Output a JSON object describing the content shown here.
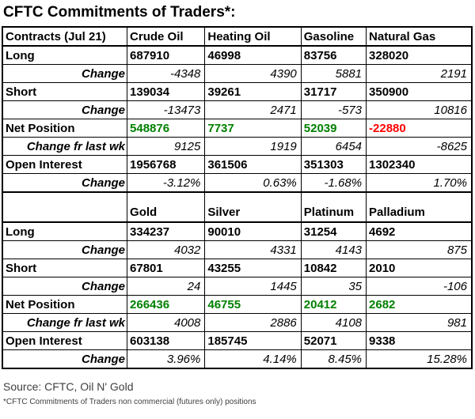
{
  "title": "CFTC Commitments of Traders*:",
  "colors": {
    "header_bg": "#E8C413",
    "label_bg": "#E9E8A0",
    "positive": "#008000",
    "negative": "#FF0000",
    "footer_text": "#3F3F3F"
  },
  "chart_data": {
    "type": "table",
    "title": "CFTC Commitments of Traders*:",
    "sections": [
      {
        "header": [
          "Contracts (Jul 21)",
          "Crude Oil",
          "Heating Oil",
          "Gasoline",
          "Natural Gas"
        ],
        "rows": [
          {
            "label": "Long",
            "type": "main",
            "values": [
              "687910",
              "46998",
              "83756",
              "328020"
            ]
          },
          {
            "label": "Change",
            "type": "change",
            "values": [
              "-4348",
              "4390",
              "5881",
              "2191"
            ]
          },
          {
            "label": "Short",
            "type": "main",
            "values": [
              "139034",
              "39261",
              "31717",
              "350900"
            ]
          },
          {
            "label": "Change",
            "type": "change",
            "values": [
              "-13473",
              "2471",
              "-573",
              "10816"
            ]
          },
          {
            "label": "Net Position",
            "type": "net",
            "values": [
              "548876",
              "7737",
              "52039",
              "-22880"
            ]
          },
          {
            "label": "Change fr last wk",
            "type": "change",
            "values": [
              "9125",
              "1919",
              "6454",
              "-8625"
            ]
          },
          {
            "label": "Open Interest",
            "type": "main",
            "values": [
              "1956768",
              "361506",
              "351303",
              "1302340"
            ]
          },
          {
            "label": "Change",
            "type": "change",
            "values": [
              "-3.12%",
              "0.63%",
              "-1.68%",
              "1.70%"
            ]
          }
        ]
      },
      {
        "header": [
          "",
          "Gold",
          "Silver",
          "Platinum",
          "Palladium"
        ],
        "rows": [
          {
            "label": "Long",
            "type": "main",
            "values": [
              "334237",
              "90010",
              "31254",
              "4692"
            ]
          },
          {
            "label": "Change",
            "type": "change",
            "values": [
              "4032",
              "4331",
              "4143",
              "875"
            ]
          },
          {
            "label": "Short",
            "type": "main",
            "values": [
              "67801",
              "43255",
              "10842",
              "2010"
            ]
          },
          {
            "label": "Change",
            "type": "change",
            "values": [
              "24",
              "1445",
              "35",
              "-106"
            ]
          },
          {
            "label": "Net Position",
            "type": "net",
            "values": [
              "266436",
              "46755",
              "20412",
              "2682"
            ]
          },
          {
            "label": "Change fr last wk",
            "type": "change",
            "values": [
              "4008",
              "2886",
              "4108",
              "981"
            ]
          },
          {
            "label": "Open Interest",
            "type": "main",
            "values": [
              "603138",
              "185745",
              "52071",
              "9338"
            ]
          },
          {
            "label": "Change",
            "type": "change",
            "values": [
              "3.96%",
              "4.14%",
              "8.45%",
              "15.28%"
            ]
          }
        ]
      }
    ]
  },
  "footer": {
    "source": "Source: CFTC, Oil N' Gold",
    "footnote": "*CFTC Commitments of Traders non commercial (futures only) positions"
  }
}
